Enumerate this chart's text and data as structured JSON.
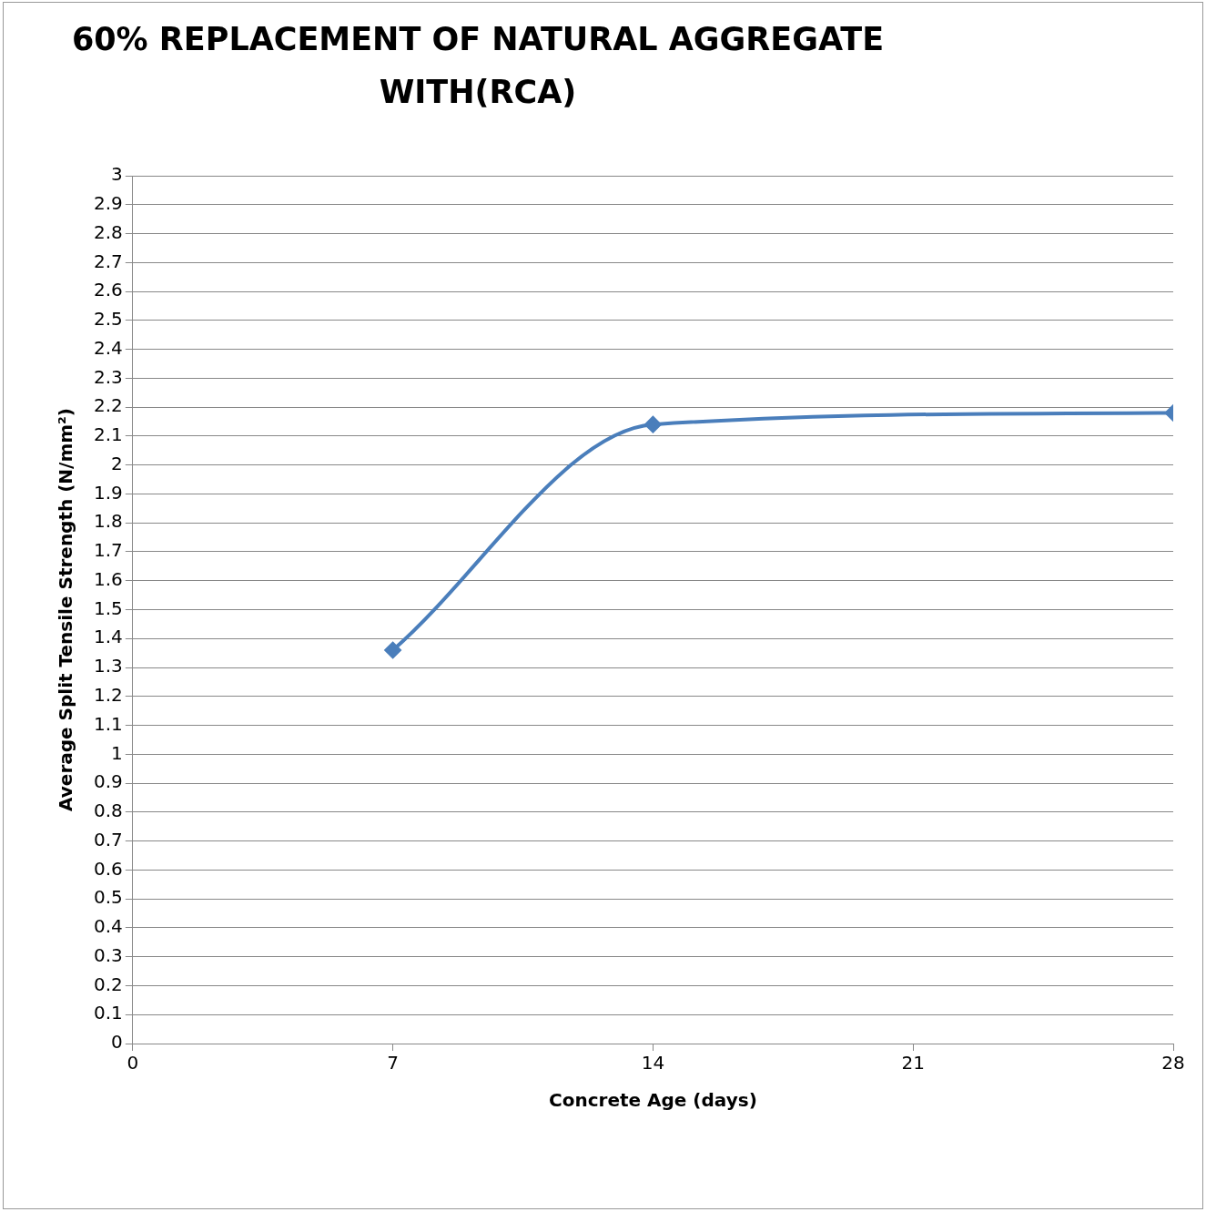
{
  "chart_data": {
    "type": "line",
    "title": "60% REPLACEMENT OF NATURAL AGGREGATE WITH(RCA)",
    "xlabel": "Concrete Age (days)",
    "ylabel": "Average Split Tensile Strength (N/mm²)",
    "x": [
      7,
      14,
      28
    ],
    "series": [
      {
        "color": "#4a7ebb",
        "values": [
          1.36,
          2.14,
          2.18
        ]
      }
    ],
    "xlim": [
      0,
      28
    ],
    "xticks": [
      0,
      7,
      14,
      21,
      28
    ],
    "ylim": [
      0,
      3
    ],
    "yticks": [
      0,
      0.1,
      0.2,
      0.3,
      0.4,
      0.5,
      0.6,
      0.7,
      0.8,
      0.9,
      1,
      1.1,
      1.2,
      1.3,
      1.4,
      1.5,
      1.6,
      1.7,
      1.8,
      1.9,
      2,
      2.1,
      2.2,
      2.3,
      2.4,
      2.5,
      2.6,
      2.7,
      2.8,
      2.9,
      3
    ],
    "grid": "y",
    "legend": false,
    "marker": "diamond",
    "line_style": "solid"
  }
}
